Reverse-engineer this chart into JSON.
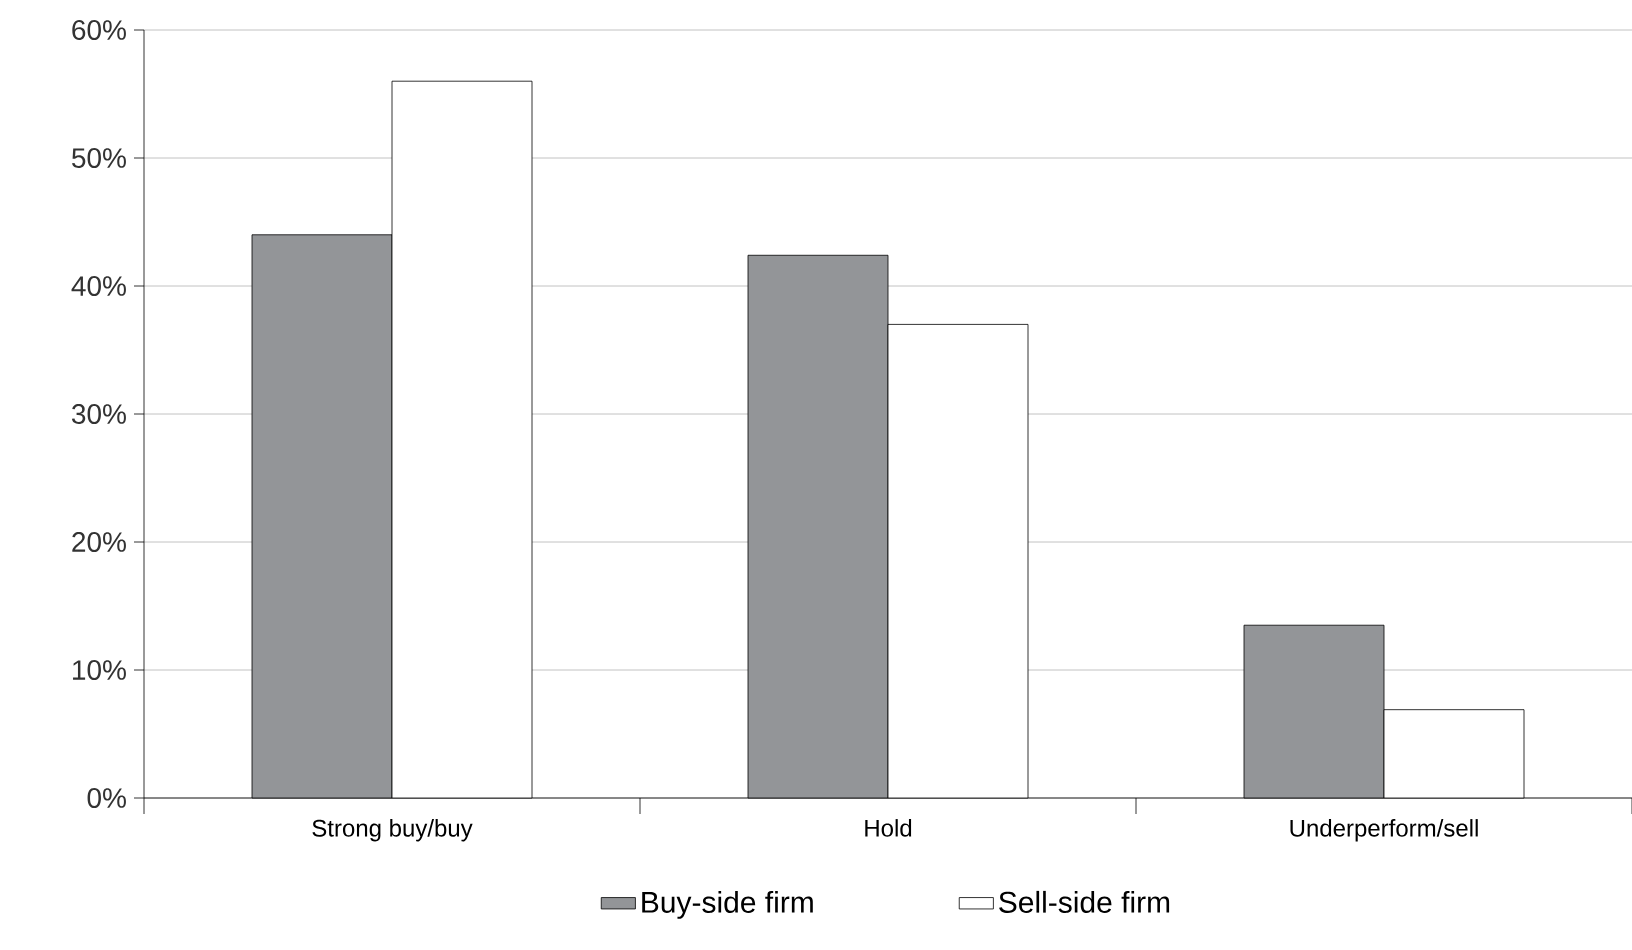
{
  "chart_data": {
    "type": "bar",
    "categories": [
      "Strong buy/buy",
      "Hold",
      "Underperform/sell"
    ],
    "series": [
      {
        "name": "Buy-side firm",
        "color": "#939598",
        "values": [
          44,
          42.4,
          13.5
        ]
      },
      {
        "name": "Sell-side firm",
        "color": "#ffffff",
        "values": [
          56,
          37,
          6.9
        ]
      }
    ],
    "ylim": [
      0,
      60
    ],
    "yticks": [
      {
        "value": 0,
        "label": "0%"
      },
      {
        "value": 10,
        "label": "10%"
      },
      {
        "value": 20,
        "label": "20%"
      },
      {
        "value": 30,
        "label": "30%"
      },
      {
        "value": 40,
        "label": "40%"
      },
      {
        "value": 50,
        "label": "50%"
      },
      {
        "value": 60,
        "label": "60%"
      }
    ],
    "grid": "y",
    "legend": "bottom"
  }
}
